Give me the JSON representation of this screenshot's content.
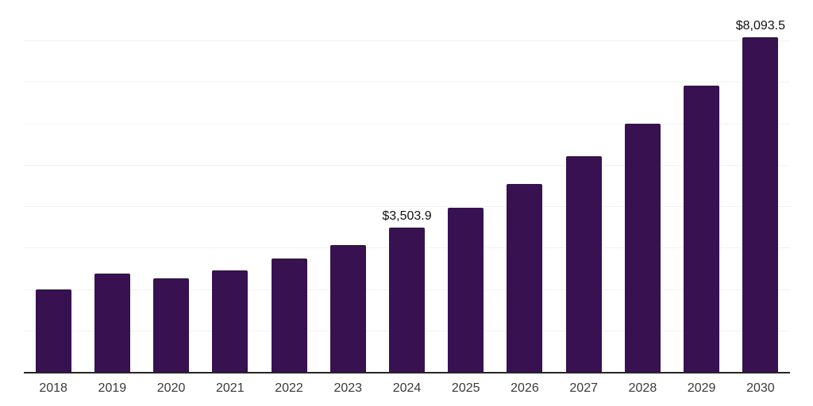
{
  "colors": {
    "background": "#ffffff",
    "bar": "#371150",
    "axis_line": "#262626",
    "gridline": "#f2f2f2",
    "tick_label": "#3a3a3a",
    "data_label": "#111111"
  },
  "chart_data": {
    "type": "bar",
    "title": "",
    "xlabel": "",
    "ylabel": "",
    "categories": [
      "2018",
      "2019",
      "2020",
      "2021",
      "2022",
      "2023",
      "2024",
      "2025",
      "2026",
      "2027",
      "2028",
      "2029",
      "2030"
    ],
    "values": [
      2020,
      2390,
      2280,
      2475,
      2760,
      3090,
      3503.9,
      3990,
      4555,
      5220,
      6005,
      6935,
      8093.5
    ],
    "annotations": [
      {
        "category": "2024",
        "text": "$3,503.9"
      },
      {
        "category": "2030",
        "text": "$8,093.5"
      }
    ],
    "ylim": [
      0,
      9000
    ],
    "gridline_step": 1000,
    "grid": "horizontal-only",
    "y_axis_tick_labels": "none",
    "legend": "none",
    "bar_corner": "slightly-rounded-top"
  }
}
